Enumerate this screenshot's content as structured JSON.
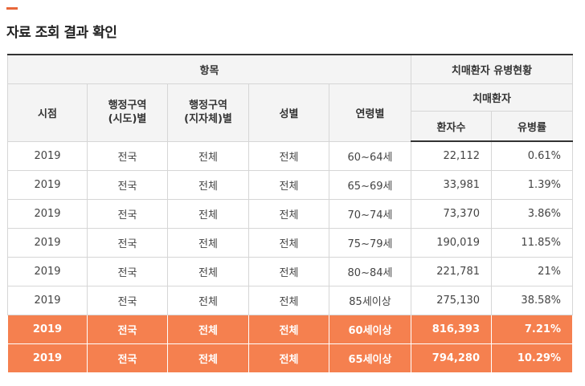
{
  "page": {
    "title": "자료 조회 결과 확인"
  },
  "table": {
    "group_headers": {
      "items": "항목",
      "dementia_status": "치매환자 유병현황",
      "dementia_patients": "치매환자"
    },
    "columns": {
      "time": "시점",
      "region_sido": "행정구역\n(시도)별",
      "region_local": "행정구역\n(지자체)별",
      "sex": "성별",
      "age": "연령별",
      "patients": "환자수",
      "prevalence": "유병률"
    },
    "rows": [
      {
        "time": "2019",
        "region_sido": "전국",
        "region_local": "전체",
        "sex": "전체",
        "age": "60~64세",
        "patients": "22,112",
        "prevalence": "0.61%"
      },
      {
        "time": "2019",
        "region_sido": "전국",
        "region_local": "전체",
        "sex": "전체",
        "age": "65~69세",
        "patients": "33,981",
        "prevalence": "1.39%"
      },
      {
        "time": "2019",
        "region_sido": "전국",
        "region_local": "전체",
        "sex": "전체",
        "age": "70~74세",
        "patients": "73,370",
        "prevalence": "3.86%"
      },
      {
        "time": "2019",
        "region_sido": "전국",
        "region_local": "전체",
        "sex": "전체",
        "age": "75~79세",
        "patients": "190,019",
        "prevalence": "11.85%"
      },
      {
        "time": "2019",
        "region_sido": "전국",
        "region_local": "전체",
        "sex": "전체",
        "age": "80~84세",
        "patients": "221,781",
        "prevalence": "21%"
      },
      {
        "time": "2019",
        "region_sido": "전국",
        "region_local": "전체",
        "sex": "전체",
        "age": "85세이상",
        "patients": "275,130",
        "prevalence": "38.58%"
      },
      {
        "time": "2019",
        "region_sido": "전국",
        "region_local": "전체",
        "sex": "전체",
        "age": "60세이상",
        "patients": "816,393",
        "prevalence": "7.21%",
        "highlight": true
      },
      {
        "time": "2019",
        "region_sido": "전국",
        "region_local": "전체",
        "sex": "전체",
        "age": "65세이상",
        "patients": "794,280",
        "prevalence": "10.29%",
        "highlight": true
      }
    ]
  },
  "colors": {
    "accent": "#e8673a",
    "highlight_row": "#f5804f",
    "header_bg": "#f4f4f4"
  }
}
